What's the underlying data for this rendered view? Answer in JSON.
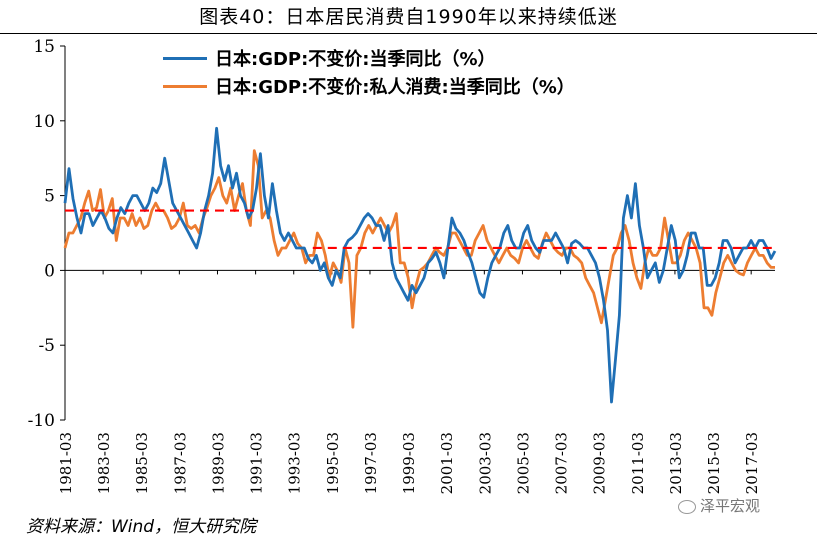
{
  "header": {
    "title": "图表40：日本居民消费自1990年以来持续低迷"
  },
  "footer": {
    "source": "资料来源：Wind，恒大研究院",
    "watermark": "泽平宏观"
  },
  "colors": {
    "gdp": "#1f6fb5",
    "consumption": "#ed7d31",
    "average": "#ff0000"
  },
  "chart_data": {
    "type": "line",
    "title": "",
    "xlabel": "",
    "ylabel": "",
    "ylim": [
      -10,
      15
    ],
    "yticks": [
      15,
      10,
      5,
      0,
      -5,
      -10
    ],
    "x_start": "1981-03",
    "x_end": "2018-06",
    "xtick_labels": [
      "1981-03",
      "1983-03",
      "1985-03",
      "1987-03",
      "1989-03",
      "1991-03",
      "1993-03",
      "1995-03",
      "1997-03",
      "1999-03",
      "2001-03",
      "2003-03",
      "2005-03",
      "2007-03",
      "2009-03",
      "2011-03",
      "2013-03",
      "2015-03",
      "2017-03"
    ],
    "legend_position": "top",
    "series": [
      {
        "name": "日本:GDP:不变价:当季同比（%）",
        "values": [
          4.5,
          6.8,
          4.8,
          3.5,
          2.5,
          3.8,
          3.8,
          3.0,
          3.5,
          4.0,
          3.5,
          2.8,
          2.5,
          3.5,
          4.2,
          3.8,
          4.5,
          5.0,
          5.0,
          4.5,
          4.0,
          4.5,
          5.5,
          5.2,
          5.8,
          7.5,
          6.0,
          4.5,
          4.0,
          3.5,
          3.0,
          2.5,
          2.0,
          1.5,
          2.5,
          4.0,
          5.0,
          6.5,
          9.5,
          7.0,
          6.0,
          7.0,
          5.5,
          6.5,
          5.0,
          4.5,
          3.5,
          4.0,
          5.5,
          7.8,
          5.0,
          3.5,
          5.8,
          4.0,
          2.5,
          2.0,
          2.5,
          2.0,
          1.5,
          1.5,
          1.5,
          0.8,
          0.5,
          1.0,
          0.0,
          0.5,
          -0.5,
          -1.0,
          0.0,
          -0.5,
          1.5,
          2.0,
          2.2,
          2.5,
          3.0,
          3.5,
          3.8,
          3.5,
          3.0,
          3.0,
          2.0,
          3.0,
          0.5,
          -0.5,
          -1.0,
          -1.5,
          -2.0,
          -1.0,
          -1.5,
          -1.0,
          -0.5,
          0.5,
          0.8,
          1.2,
          0.5,
          -0.5,
          1.5,
          3.5,
          2.8,
          2.5,
          2.0,
          1.2,
          0.5,
          -0.5,
          -1.5,
          -1.8,
          -0.5,
          0.5,
          1.0,
          1.5,
          2.5,
          3.0,
          2.0,
          1.5,
          1.5,
          2.5,
          3.0,
          2.0,
          1.5,
          1.2,
          2.0,
          2.0,
          2.0,
          2.5,
          2.0,
          1.5,
          0.5,
          1.8,
          2.0,
          1.8,
          1.5,
          1.5,
          1.0,
          0.5,
          -0.5,
          -2.0,
          -4.0,
          -8.8,
          -6.0,
          -3.0,
          3.5,
          5.0,
          3.5,
          5.8,
          3.0,
          1.5,
          -0.5,
          0.0,
          0.5,
          -0.8,
          0.0,
          1.5,
          3.0,
          2.0,
          -0.5,
          0.0,
          1.0,
          2.5,
          2.5,
          1.5,
          1.5,
          -1.0,
          -1.0,
          -0.5,
          0.5,
          2.0,
          2.0,
          1.5,
          0.5,
          1.0,
          1.5,
          1.5,
          2.0,
          1.5,
          2.0,
          2.0,
          1.5,
          0.8,
          1.3
        ]
      },
      {
        "name": "日本:GDP:不变价:私人消费:当季同比（%）",
        "values": [
          1.5,
          2.5,
          2.5,
          3.0,
          3.5,
          4.5,
          5.3,
          4.0,
          4.2,
          5.4,
          3.5,
          4.0,
          4.8,
          2.0,
          3.5,
          3.5,
          3.0,
          3.8,
          3.0,
          3.5,
          2.8,
          3.0,
          4.0,
          4.5,
          4.0,
          4.0,
          3.5,
          2.8,
          3.0,
          3.5,
          4.5,
          3.0,
          2.8,
          3.0,
          2.5,
          3.5,
          4.2,
          5.0,
          5.5,
          6.2,
          5.0,
          4.5,
          5.5,
          4.0,
          5.0,
          5.8,
          4.0,
          3.0,
          8.0,
          7.0,
          3.5,
          4.0,
          3.5,
          2.0,
          1.0,
          1.5,
          1.5,
          2.0,
          2.5,
          1.8,
          1.5,
          0.5,
          1.0,
          1.0,
          2.5,
          2.0,
          1.0,
          -0.5,
          0.5,
          0.0,
          -0.8,
          1.5,
          0.5,
          -3.8,
          1.0,
          1.5,
          2.5,
          3.0,
          2.5,
          3.0,
          3.5,
          3.0,
          2.5,
          3.0,
          3.8,
          0.5,
          0.5,
          -0.5,
          -2.5,
          -1.0,
          0.0,
          0.2,
          0.5,
          1.0,
          1.5,
          1.2,
          1.0,
          1.5,
          2.5,
          2.5,
          2.0,
          1.5,
          1.0,
          1.0,
          2.0,
          2.5,
          3.0,
          2.0,
          1.5,
          1.0,
          0.5,
          1.0,
          1.5,
          1.0,
          0.8,
          0.5,
          1.5,
          2.0,
          1.5,
          1.0,
          0.8,
          1.8,
          2.5,
          2.0,
          1.5,
          1.2,
          1.0,
          1.5,
          1.5,
          1.0,
          0.8,
          0.5,
          -0.5,
          -1.0,
          -1.5,
          -2.5,
          -3.5,
          -2.0,
          -0.5,
          1.0,
          1.5,
          2.5,
          3.0,
          2.0,
          0.5,
          -0.5,
          -1.2,
          0.5,
          1.5,
          1.0,
          1.0,
          1.5,
          3.5,
          2.0,
          0.5,
          0.5,
          1.0,
          2.0,
          2.5,
          2.0,
          1.5,
          0.5,
          -2.5,
          -2.5,
          -3.0,
          -1.5,
          -0.5,
          0.5,
          1.0,
          0.5,
          0.0,
          -0.2,
          -0.3,
          0.5,
          1.0,
          1.5,
          1.0,
          1.0,
          0.5,
          0.2,
          0.2
        ]
      },
      {
        "name": "",
        "style": "dashed",
        "segments": [
          {
            "from": "1981-03",
            "to": "1991-03",
            "value": 4.0
          },
          {
            "from": "1994-03",
            "to": "2018-06",
            "value": 1.5
          }
        ]
      }
    ]
  }
}
